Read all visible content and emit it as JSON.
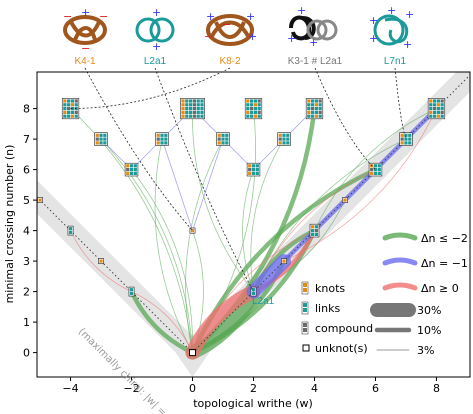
{
  "chart_data": {
    "type": "scatter",
    "xlabel": "topological writhe (w)",
    "ylabel": "minimal crossing number (n)",
    "xlim": [
      -5.1,
      9.1
    ],
    "ylim": [
      -0.8,
      9.2
    ],
    "xticks": [
      -4,
      -2,
      0,
      2,
      4,
      6,
      8
    ],
    "yticks": [
      0,
      1,
      2,
      3,
      4,
      5,
      6,
      7,
      8
    ],
    "band_label": "(maximally chiral: |w| = n)",
    "nodes": [
      {
        "w": 0,
        "n": 0,
        "kind": "unknot"
      },
      {
        "w": 2,
        "n": 2,
        "kind": "link"
      },
      {
        "w": -2,
        "n": 2,
        "kind": "link"
      },
      {
        "w": 3,
        "n": 3,
        "kind": "knot"
      },
      {
        "w": -3,
        "n": 3,
        "kind": "knot"
      },
      {
        "w": 0,
        "n": 4,
        "kind": "knot"
      },
      {
        "w": 4,
        "n": 4,
        "kind": "mixed"
      },
      {
        "w": -4,
        "n": 4,
        "kind": "link"
      },
      {
        "w": 5,
        "n": 5,
        "kind": "knot"
      },
      {
        "w": -5,
        "n": 5,
        "kind": "knot"
      },
      {
        "w": -2,
        "n": 6,
        "kind": "mixed"
      },
      {
        "w": 2,
        "n": 6,
        "kind": "mixed"
      },
      {
        "w": 6,
        "n": 6,
        "kind": "mixed"
      },
      {
        "w": -3,
        "n": 7,
        "kind": "mixed"
      },
      {
        "w": -1,
        "n": 7,
        "kind": "mixed"
      },
      {
        "w": 1,
        "n": 7,
        "kind": "mixed"
      },
      {
        "w": 3,
        "n": 7,
        "kind": "mixed"
      },
      {
        "w": 7,
        "n": 7,
        "kind": "mixed"
      },
      {
        "w": -4,
        "n": 8,
        "kind": "mixed"
      },
      {
        "w": 0,
        "n": 8,
        "kind": "mixed"
      },
      {
        "w": 2,
        "n": 8,
        "kind": "mixed"
      },
      {
        "w": 4,
        "n": 8,
        "kind": "mixed"
      },
      {
        "w": 8,
        "n": 8,
        "kind": "mixed"
      }
    ],
    "transitions": [
      {
        "from": [
          0,
          0
        ],
        "to": [
          2,
          2
        ],
        "class": "dn_ge0",
        "weight": 30
      },
      {
        "from": [
          2,
          2
        ],
        "to": [
          4,
          4
        ],
        "class": "dn_ge0",
        "weight": 10
      },
      {
        "from": [
          2,
          2
        ],
        "to": [
          0,
          0
        ],
        "class": "dn_le_m2",
        "weight": 30
      },
      {
        "from": [
          -2,
          2
        ],
        "to": [
          0,
          0
        ],
        "class": "dn_le_m2",
        "weight": 10
      },
      {
        "from": [
          3,
          3
        ],
        "to": [
          0,
          0
        ],
        "class": "dn_le_m2",
        "weight": 10
      },
      {
        "from": [
          4,
          4
        ],
        "to": [
          2,
          2
        ],
        "class": "dn_le_m2",
        "weight": 10
      },
      {
        "from": [
          4,
          4
        ],
        "to": [
          0,
          0
        ],
        "class": "dn_le_m2",
        "weight": 10
      },
      {
        "from": [
          6,
          6
        ],
        "to": [
          0,
          0
        ],
        "class": "dn_le_m2",
        "weight": 10
      },
      {
        "from": [
          4,
          8
        ],
        "to": [
          0,
          0
        ],
        "class": "dn_le_m2",
        "weight": 10
      },
      {
        "from": [
          -1,
          7
        ],
        "to": [
          0,
          0
        ],
        "class": "dn_le_m2",
        "weight": 3
      },
      {
        "from": [
          2,
          8
        ],
        "to": [
          0,
          0
        ],
        "class": "dn_le_m2",
        "weight": 3
      },
      {
        "from": [
          0,
          8
        ],
        "to": [
          2,
          2
        ],
        "class": "dn_le_m2",
        "weight": 3
      },
      {
        "from": [
          -4,
          8
        ],
        "to": [
          0,
          0
        ],
        "class": "dn_le_m2",
        "weight": 3
      },
      {
        "from": [
          2,
          6
        ],
        "to": [
          2,
          2
        ],
        "class": "dn_le_m2",
        "weight": 3
      },
      {
        "from": [
          -2,
          6
        ],
        "to": [
          0,
          0
        ],
        "class": "dn_le_m2",
        "weight": 3
      },
      {
        "from": [
          7,
          7
        ],
        "to": [
          2,
          2
        ],
        "class": "dn_le_m2",
        "weight": 3
      },
      {
        "from": [
          5,
          5
        ],
        "to": [
          2,
          2
        ],
        "class": "dn_le_m2",
        "weight": 3
      },
      {
        "from": [
          8,
          8
        ],
        "to": [
          4,
          4
        ],
        "class": "dn_le_m2",
        "weight": 3
      },
      {
        "from": [
          0,
          4
        ],
        "to": [
          0,
          0
        ],
        "class": "dn_le_m2",
        "weight": 3
      },
      {
        "from": [
          3,
          7
        ],
        "to": [
          2,
          2
        ],
        "class": "dn_le_m2",
        "weight": 3
      },
      {
        "from": [
          -3,
          7
        ],
        "to": [
          0,
          0
        ],
        "class": "dn_le_m2",
        "weight": 3
      },
      {
        "from": [
          1,
          7
        ],
        "to": [
          0,
          0
        ],
        "class": "dn_le_m2",
        "weight": 3
      },
      {
        "from": [
          8,
          8
        ],
        "to": [
          7,
          7
        ],
        "class": "dn_m1",
        "weight": 10
      },
      {
        "from": [
          7,
          7
        ],
        "to": [
          6,
          6
        ],
        "class": "dn_m1",
        "weight": 10
      },
      {
        "from": [
          6,
          6
        ],
        "to": [
          5,
          5
        ],
        "class": "dn_m1",
        "weight": 10
      },
      {
        "from": [
          5,
          5
        ],
        "to": [
          4,
          4
        ],
        "class": "dn_m1",
        "weight": 10
      },
      {
        "from": [
          4,
          4
        ],
        "to": [
          3,
          3
        ],
        "class": "dn_m1",
        "weight": 10
      },
      {
        "from": [
          3,
          3
        ],
        "to": [
          2,
          2
        ],
        "class": "dn_m1",
        "weight": 30
      },
      {
        "from": [
          0,
          8
        ],
        "to": [
          -1,
          7
        ],
        "class": "dn_m1",
        "weight": 3
      },
      {
        "from": [
          0,
          8
        ],
        "to": [
          1,
          7
        ],
        "class": "dn_m1",
        "weight": 3
      },
      {
        "from": [
          -1,
          7
        ],
        "to": [
          -2,
          6
        ],
        "class": "dn_m1",
        "weight": 3
      },
      {
        "from": [
          1,
          7
        ],
        "to": [
          2,
          6
        ],
        "class": "dn_m1",
        "weight": 3
      },
      {
        "from": [
          -2,
          6
        ],
        "to": [
          -3,
          7
        ],
        "class": "dn_m1",
        "weight": 3
      },
      {
        "from": [
          2,
          6
        ],
        "to": [
          3,
          7
        ],
        "class": "dn_m1",
        "weight": 3
      },
      {
        "from": [
          4,
          8
        ],
        "to": [
          3,
          7
        ],
        "class": "dn_m1",
        "weight": 3
      },
      {
        "from": [
          0,
          4
        ],
        "to": [
          -1,
          7
        ],
        "class": "dn_m1",
        "weight": 3
      },
      {
        "from": [
          0,
          4
        ],
        "to": [
          1,
          7
        ],
        "class": "dn_m1",
        "weight": 3
      },
      {
        "from": [
          -2,
          2
        ],
        "to": [
          -4,
          4
        ],
        "class": "dn_ge0",
        "weight": 3
      },
      {
        "from": [
          0,
          0
        ],
        "to": [
          -2,
          2
        ],
        "class": "dn_ge0",
        "weight": 3
      },
      {
        "from": [
          2,
          2
        ],
        "to": [
          6,
          6
        ],
        "class": "dn_ge0",
        "weight": 3
      },
      {
        "from": [
          3,
          3
        ],
        "to": [
          8,
          8
        ],
        "class": "dn_ge0",
        "weight": 3
      },
      {
        "from": [
          0,
          0
        ],
        "to": [
          4,
          4
        ],
        "class": "dn_ge0",
        "weight": 3
      }
    ],
    "legend": {
      "classes": [
        {
          "key": "dn_le_m2",
          "label": "Δn ≤ −2",
          "color": "#5aa855"
        },
        {
          "key": "dn_m1",
          "label": "Δn = −1",
          "color": "#6b6bf0"
        },
        {
          "key": "dn_ge0",
          "label": "Δn ≥ 0",
          "color": "#f07070"
        }
      ],
      "kinds": [
        {
          "key": "knot",
          "label": "knots"
        },
        {
          "key": "link",
          "label": "links"
        },
        {
          "key": "compound",
          "label": "compound"
        },
        {
          "key": "unknot",
          "label": "unknot(s)"
        }
      ],
      "widths": [
        {
          "label": "30%",
          "value": 30
        },
        {
          "label": "10%",
          "value": 10
        },
        {
          "label": "3%",
          "value": 3
        }
      ]
    },
    "knots_shown": [
      {
        "name": "K4-1",
        "color": "#e38b17",
        "w": 0,
        "n": 4
      },
      {
        "name": "L2a1",
        "color": "#1a9a98",
        "w": 2,
        "n": 2
      },
      {
        "name": "K8-2",
        "color": "#e38b17",
        "w": -4,
        "n": 8
      },
      {
        "name": "K3-1 # L2a1",
        "color": "#777777",
        "w": 6,
        "n": 6
      },
      {
        "name": "L7n1",
        "color": "#1a9a98",
        "w": 7,
        "n": 7
      }
    ],
    "annotation_label": "L2a1",
    "colors": {
      "knot": "#e38b17",
      "link": "#1a9a98",
      "compound": "#6a6a6a",
      "band": "#e4e4e4"
    }
  }
}
